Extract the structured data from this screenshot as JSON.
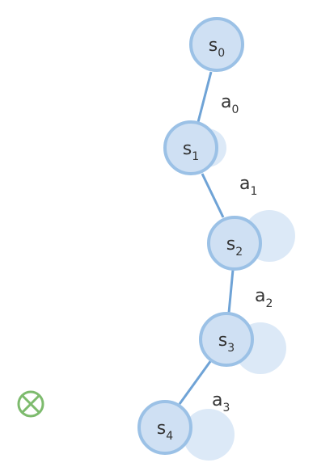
{
  "colors": {
    "edge": "#6fa3d6",
    "node_fill": "#cfe0f3",
    "node_stroke": "#9bc1e6",
    "ghost_fill": "#dce9f7",
    "marker": "#7dbb6d",
    "text": "#333333"
  },
  "states": [
    {
      "base": "s",
      "sub": "0"
    },
    {
      "base": "s",
      "sub": "1"
    },
    {
      "base": "s",
      "sub": "2"
    },
    {
      "base": "s",
      "sub": "3"
    },
    {
      "base": "s",
      "sub": "4"
    }
  ],
  "actions": [
    {
      "base": "a",
      "sub": "0"
    },
    {
      "base": "a",
      "sub": "1"
    },
    {
      "base": "a",
      "sub": "2"
    },
    {
      "base": "a",
      "sub": "3"
    }
  ],
  "marker": {
    "icon": "circle-x-icon"
  }
}
